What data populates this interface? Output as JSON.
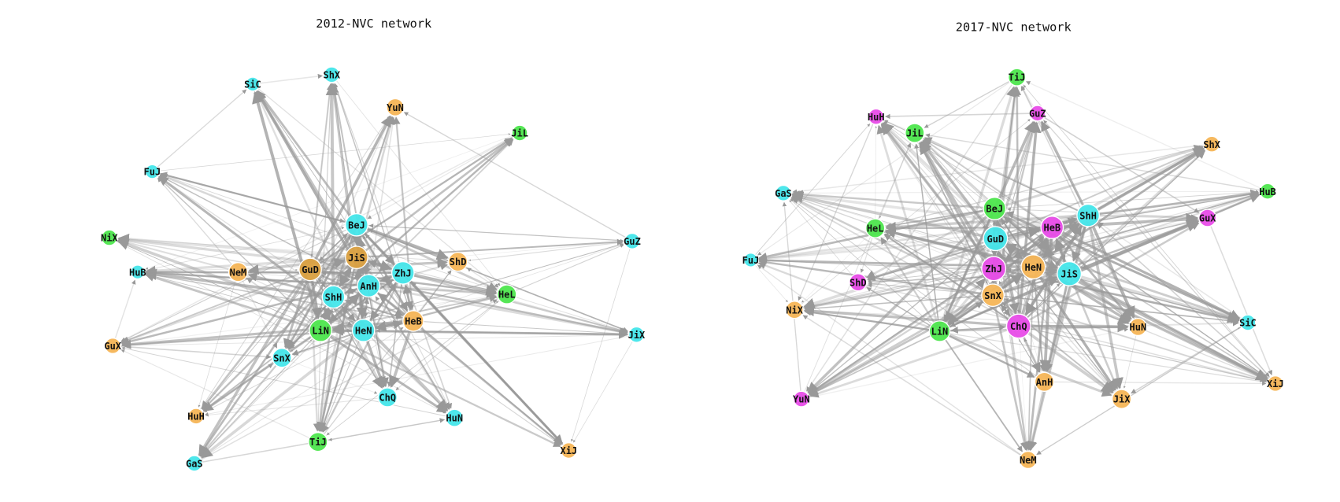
{
  "graphs": [
    {
      "title": "2012-NVC network",
      "nodes": [
        {
          "label": "SiC",
          "color": "#45e6ea"
        },
        {
          "label": "ShX",
          "color": "#45e6ea"
        },
        {
          "label": "YuN",
          "color": "#f5b556"
        },
        {
          "label": "JiL",
          "color": "#4de64d"
        },
        {
          "label": "FuJ",
          "color": "#45e6ea"
        },
        {
          "label": "NiX",
          "color": "#4de64d"
        },
        {
          "label": "GuZ",
          "color": "#45e6ea"
        },
        {
          "label": "HuB",
          "color": "#45e6ea"
        },
        {
          "label": "BeJ",
          "color": "#45e6ea"
        },
        {
          "label": "JiS",
          "color": "#daa040"
        },
        {
          "label": "NeM",
          "color": "#f5b556"
        },
        {
          "label": "GuD",
          "color": "#daa040"
        },
        {
          "label": "ShD",
          "color": "#f5b556"
        },
        {
          "label": "ZhJ",
          "color": "#45e6ea"
        },
        {
          "label": "AnH",
          "color": "#45e6ea"
        },
        {
          "label": "ShH",
          "color": "#45e6ea"
        },
        {
          "label": "HeL",
          "color": "#4de64d"
        },
        {
          "label": "LiN",
          "color": "#4de64d"
        },
        {
          "label": "HeN",
          "color": "#45e6ea"
        },
        {
          "label": "HeB",
          "color": "#f5b556"
        },
        {
          "label": "JiX",
          "color": "#45e6ea"
        },
        {
          "label": "GuX",
          "color": "#f5b556"
        },
        {
          "label": "SnX",
          "color": "#45e6ea"
        },
        {
          "label": "ChQ",
          "color": "#45e6ea"
        },
        {
          "label": "HuN",
          "color": "#45e6ea"
        },
        {
          "label": "HuH",
          "color": "#f5b556"
        },
        {
          "label": "TiJ",
          "color": "#4de64d"
        },
        {
          "label": "XiJ",
          "color": "#f5b556"
        },
        {
          "label": "GaS",
          "color": "#45e6ea"
        }
      ]
    },
    {
      "title": "2017-NVC network",
      "nodes": [
        {
          "label": "TiJ",
          "color": "#4de64d"
        },
        {
          "label": "HuH",
          "color": "#e84ce8"
        },
        {
          "label": "GuZ",
          "color": "#e84ce8"
        },
        {
          "label": "JiL",
          "color": "#4de64d"
        },
        {
          "label": "ShX",
          "color": "#f5b556"
        },
        {
          "label": "GaS",
          "color": "#45e6ea"
        },
        {
          "label": "HuB",
          "color": "#4de64d"
        },
        {
          "label": "BeJ",
          "color": "#4de64d"
        },
        {
          "label": "ShH",
          "color": "#45e6ea"
        },
        {
          "label": "HeB",
          "color": "#e84ce8"
        },
        {
          "label": "GuX",
          "color": "#e84ce8"
        },
        {
          "label": "HeL",
          "color": "#4de64d"
        },
        {
          "label": "GuD",
          "color": "#45e6ea"
        },
        {
          "label": "FuJ",
          "color": "#45e6ea"
        },
        {
          "label": "ShD",
          "color": "#e84ce8"
        },
        {
          "label": "ZhJ",
          "color": "#e84ce8"
        },
        {
          "label": "HeN",
          "color": "#f5b556"
        },
        {
          "label": "JiS",
          "color": "#45e6ea"
        },
        {
          "label": "SnX",
          "color": "#f5b556"
        },
        {
          "label": "NiX",
          "color": "#f5b556"
        },
        {
          "label": "ChQ",
          "color": "#e84ce8"
        },
        {
          "label": "HuN",
          "color": "#f5b556"
        },
        {
          "label": "SiC",
          "color": "#45e6ea"
        },
        {
          "label": "LiN",
          "color": "#4de64d"
        },
        {
          "label": "AnH",
          "color": "#f5b556"
        },
        {
          "label": "XiJ",
          "color": "#f5b556"
        },
        {
          "label": "JiX",
          "color": "#f5b556"
        },
        {
          "label": "YuN",
          "color": "#e84ce8"
        },
        {
          "label": "NeM",
          "color": "#f5b556"
        }
      ]
    }
  ]
}
